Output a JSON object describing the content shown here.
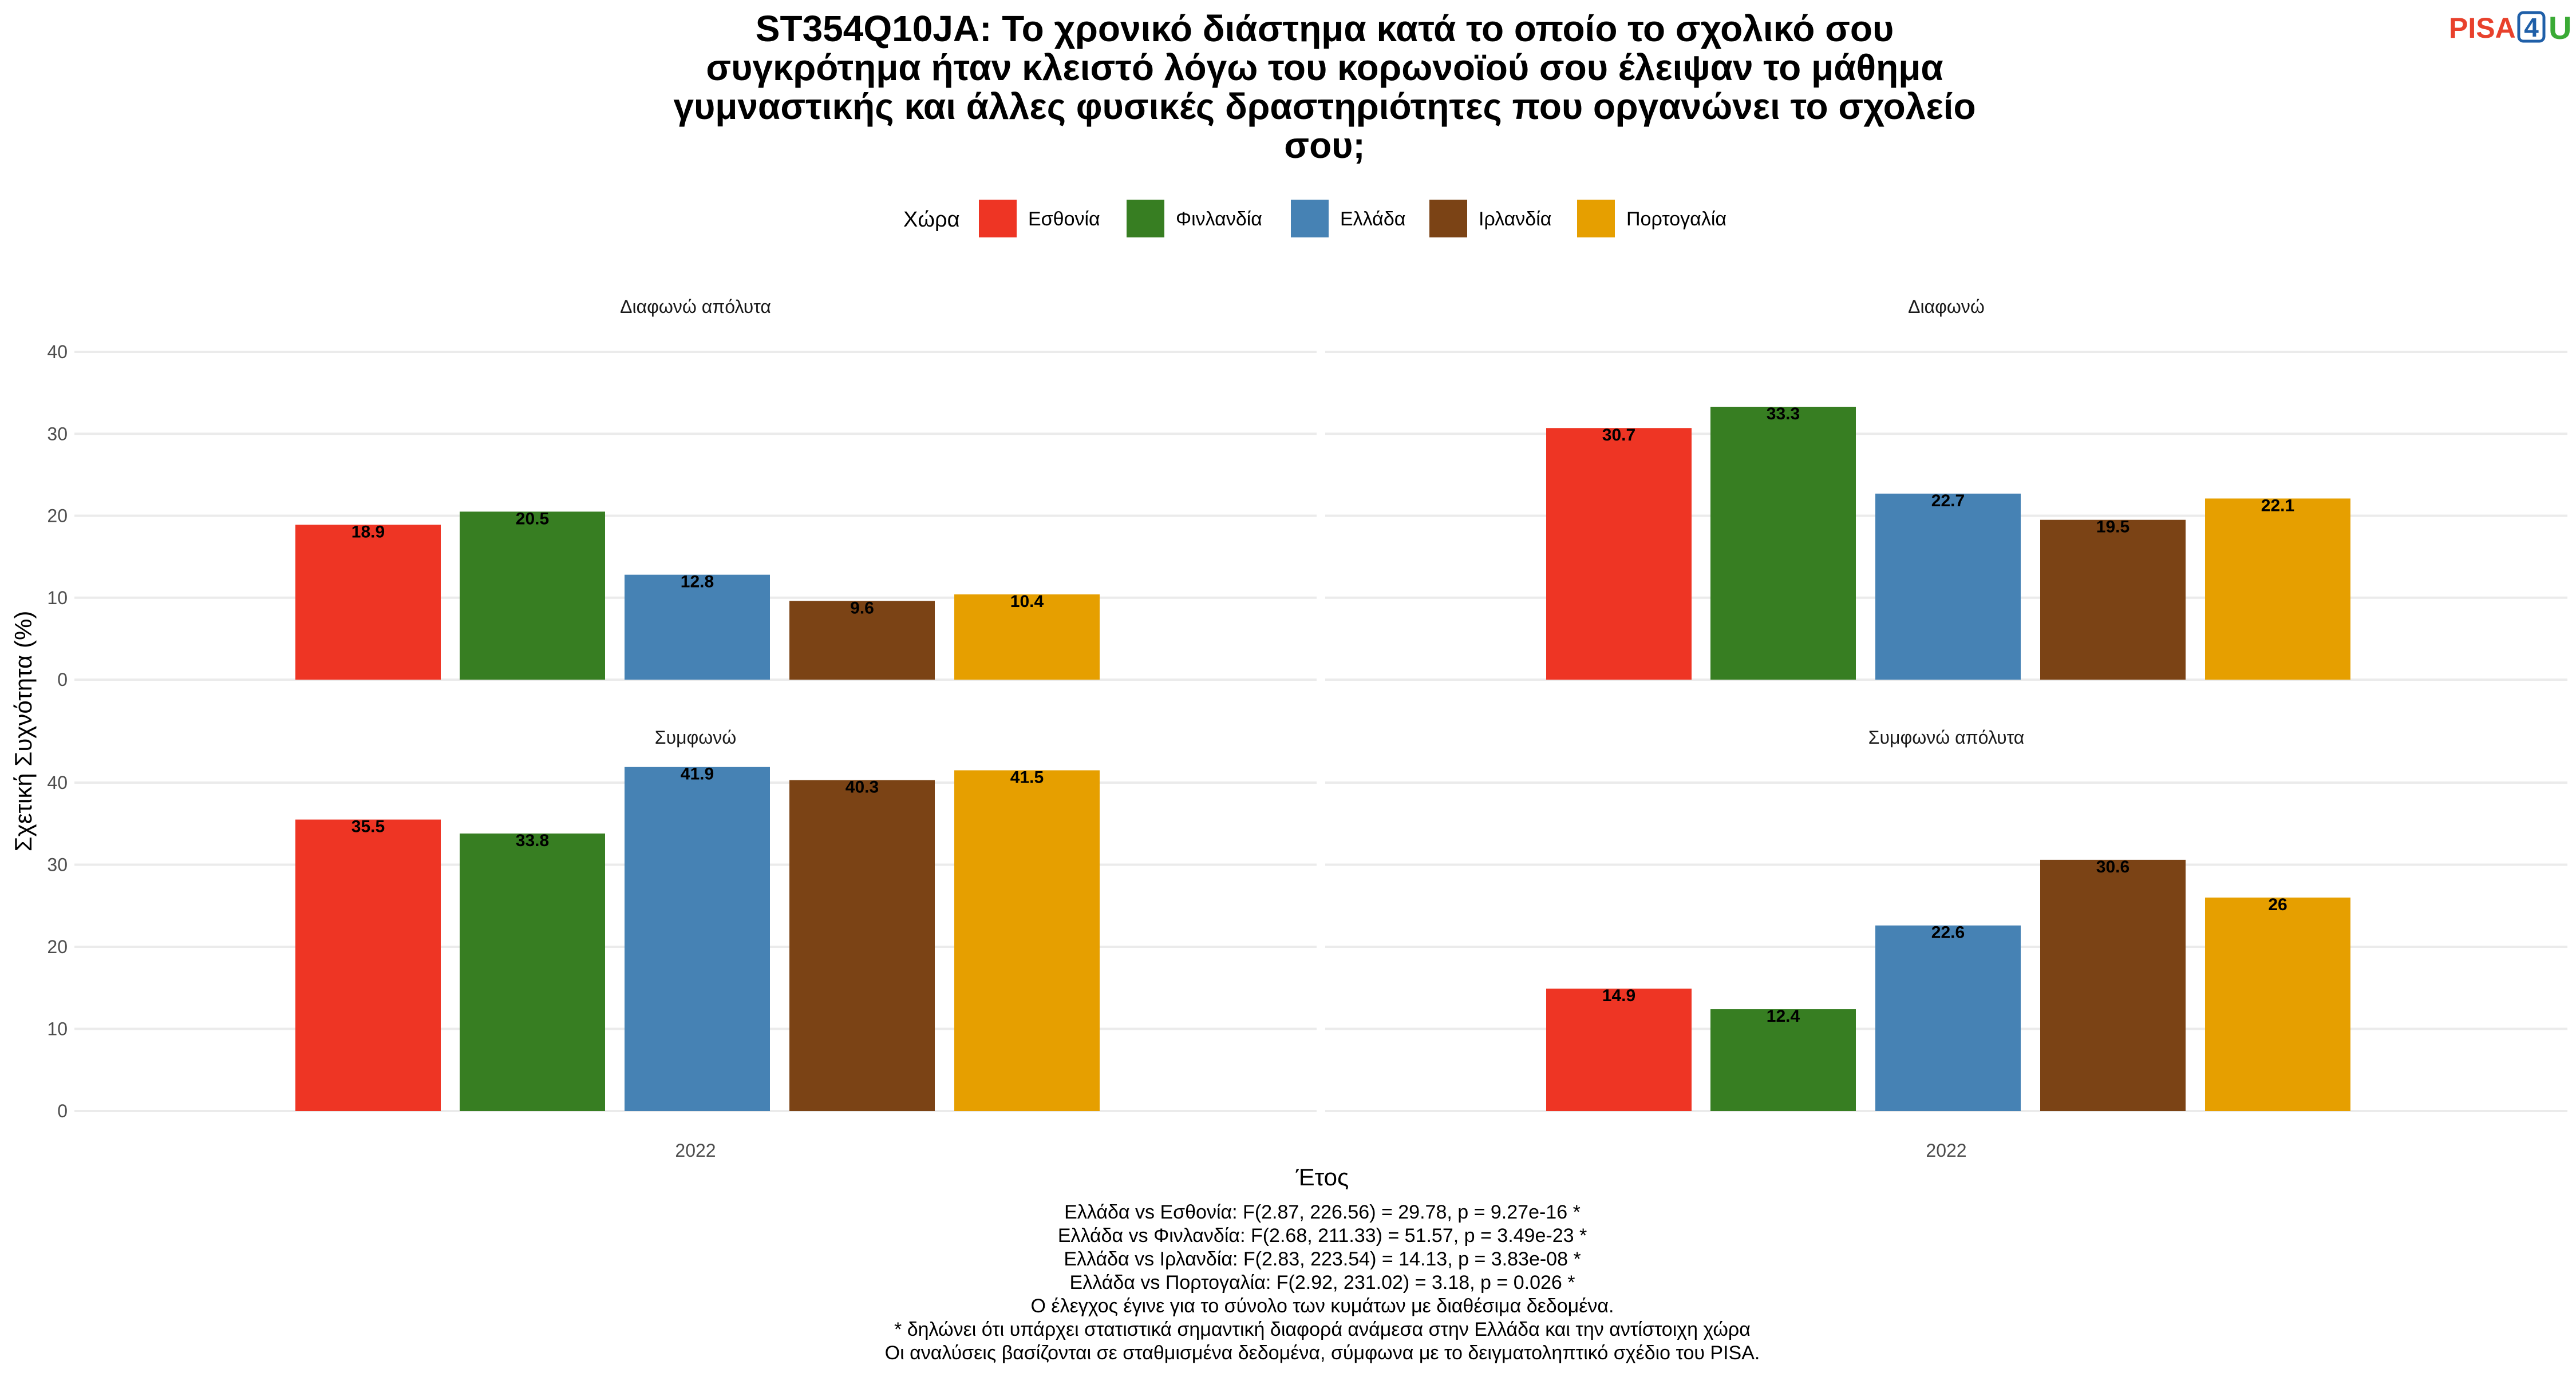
{
  "title_lines": [
    "ST354Q10JA: Το χρονικό διάστημα κατά το οποίο το σχολικό σου",
    "συγκρότημα ήταν κλειστό λόγω του κορωνοϊού σου έλειψαν το μάθημα",
    "γυμναστικής και άλλες φυσικές δραστηριότητες που οργανώνει το σχολείο",
    "σου;"
  ],
  "logo": {
    "pisa": "PISA",
    "four": "4",
    "u": "U"
  },
  "legend": {
    "title": "Χώρα",
    "items": [
      {
        "label": "Εσθονία",
        "color": "#ee3524"
      },
      {
        "label": "Φινλανδία",
        "color": "#377e22"
      },
      {
        "label": "Ελλάδα",
        "color": "#4682b4"
      },
      {
        "label": "Ιρλανδία",
        "color": "#7b4315"
      },
      {
        "label": "Πορτογαλία",
        "color": "#e69f00"
      }
    ]
  },
  "chart_data": {
    "type": "bar",
    "x_category": "2022",
    "xlabel": "Έτος",
    "ylabel": "Σχετική Συχνότητα (%)",
    "ylim": [
      0,
      40
    ],
    "yticks": [
      0,
      10,
      20,
      30,
      40
    ],
    "grid": true,
    "legend_position": "top",
    "series_names": [
      "Εσθονία",
      "Φινλανδία",
      "Ελλάδα",
      "Ιρλανδία",
      "Πορτογαλία"
    ],
    "panels": [
      {
        "label": "Διαφωνώ απόλυτα",
        "values": [
          18.9,
          20.5,
          12.8,
          9.6,
          10.4
        ]
      },
      {
        "label": "Διαφωνώ",
        "values": [
          30.7,
          33.3,
          22.7,
          19.5,
          22.1
        ]
      },
      {
        "label": "Συμφωνώ",
        "values": [
          35.5,
          33.8,
          41.9,
          40.3,
          41.5
        ]
      },
      {
        "label": "Συμφωνώ απόλυτα",
        "values": [
          14.9,
          12.4,
          22.6,
          30.6,
          26
        ]
      }
    ]
  },
  "footer_lines": [
    "Ελλάδα vs Εσθονία: F(2.87, 226.56) = 29.78, p = 9.27e-16 *",
    "Ελλάδα vs Φινλανδία: F(2.68, 211.33) = 51.57, p = 3.49e-23 *",
    "Ελλάδα vs Ιρλανδία: F(2.83, 223.54) = 14.13, p = 3.83e-08 *",
    "Ελλάδα vs Πορτογαλία: F(2.92, 231.02) = 3.18, p = 0.026 *",
    "Ο έλεγχος έγινε για το σύνολο των κυμάτων με διαθέσιμα δεδομένα.",
    "* δηλώνει ότι υπάρχει στατιστικά σημαντική διαφορά ανάμεσα στην Ελλάδα και την αντίστοιχη χώρα",
    "Οι αναλύσεις βασίζονται σε σταθμισμένα δεδομένα, σύμφωνα με το δειγματοληπτικό σχέδιο του PISA."
  ]
}
